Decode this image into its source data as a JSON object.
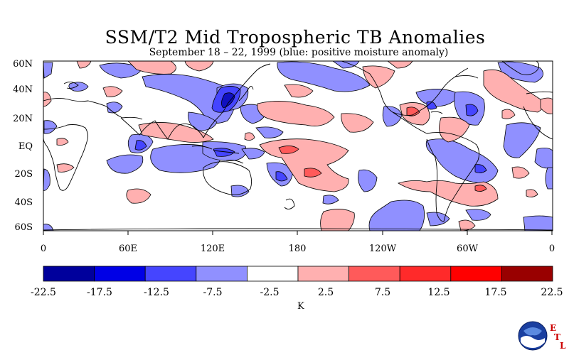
{
  "title": "SSM/T2 Mid Tropospheric TB Anomalies",
  "subtitle": "September 18 – 22, 1999 (blue: positive moisture anomaly)",
  "lat_labels": [
    "60N",
    "40N",
    "20N",
    "EQ",
    "20S",
    "40S",
    "60S"
  ],
  "lon_labels": [
    "0",
    "60E",
    "120E",
    "180",
    "120W",
    "60W",
    "0"
  ],
  "colorbar": {
    "ticks": [
      "-22.5",
      "-17.5",
      "-12.5",
      "-7.5",
      "-2.5",
      "2.5",
      "7.5",
      "12.5",
      "17.5",
      "22.5"
    ],
    "colors": [
      "#00009c",
      "#0000e6",
      "#4545ff",
      "#9090ff",
      "#ffffff",
      "#ffb0b0",
      "#ff5a5a",
      "#ff2a2a",
      "#ff0000",
      "#990000"
    ],
    "unit": "K"
  },
  "logo": {
    "name": "NOAA",
    "letters": [
      "E",
      "T",
      "L"
    ]
  },
  "map_colors": {
    "blue_light": "#9090ff",
    "blue_mid": "#4545ff",
    "blue_dark": "#1010c0",
    "red_light": "#ffb0b0",
    "red_mid": "#ff5a5a"
  }
}
